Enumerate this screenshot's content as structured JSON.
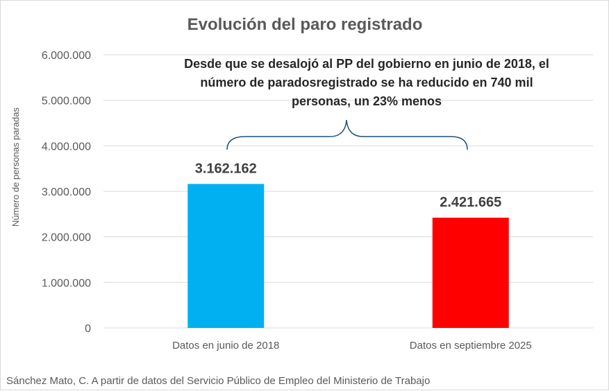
{
  "chart_data": {
    "type": "bar",
    "title": "Evolución del paro registrado",
    "xlabel": "",
    "ylabel": "Número de personas paradas",
    "ylim": [
      0,
      6000000
    ],
    "yticks": [
      0,
      1000000,
      2000000,
      3000000,
      4000000,
      5000000,
      6000000
    ],
    "ytick_labels": [
      "0",
      "1.000.000",
      "2.000.000",
      "3.000.000",
      "4.000.000",
      "5.000.000",
      "6.000.000"
    ],
    "grid": true,
    "legend": "none",
    "categories": [
      "Datos en junio de 2018",
      "Datos en septiembre 2025"
    ],
    "values": [
      3162162,
      2421665
    ],
    "data_labels": [
      "3.162.162",
      "2.421.665"
    ],
    "colors": [
      "#00b0f0",
      "#ff0000"
    ],
    "annotation": {
      "lines": [
        "Desde que se desalojó al PP del gobierno en junio de 2018, el",
        "número de paradosregistrado se ha reducido en 740 mil",
        "personas, un 23% menos"
      ],
      "bracket_color": "#1f4e79"
    }
  },
  "source_note": "Sánchez Mato, C.  A partir de datos del Servicio Público de Empleo del Ministerio de Trabajo"
}
